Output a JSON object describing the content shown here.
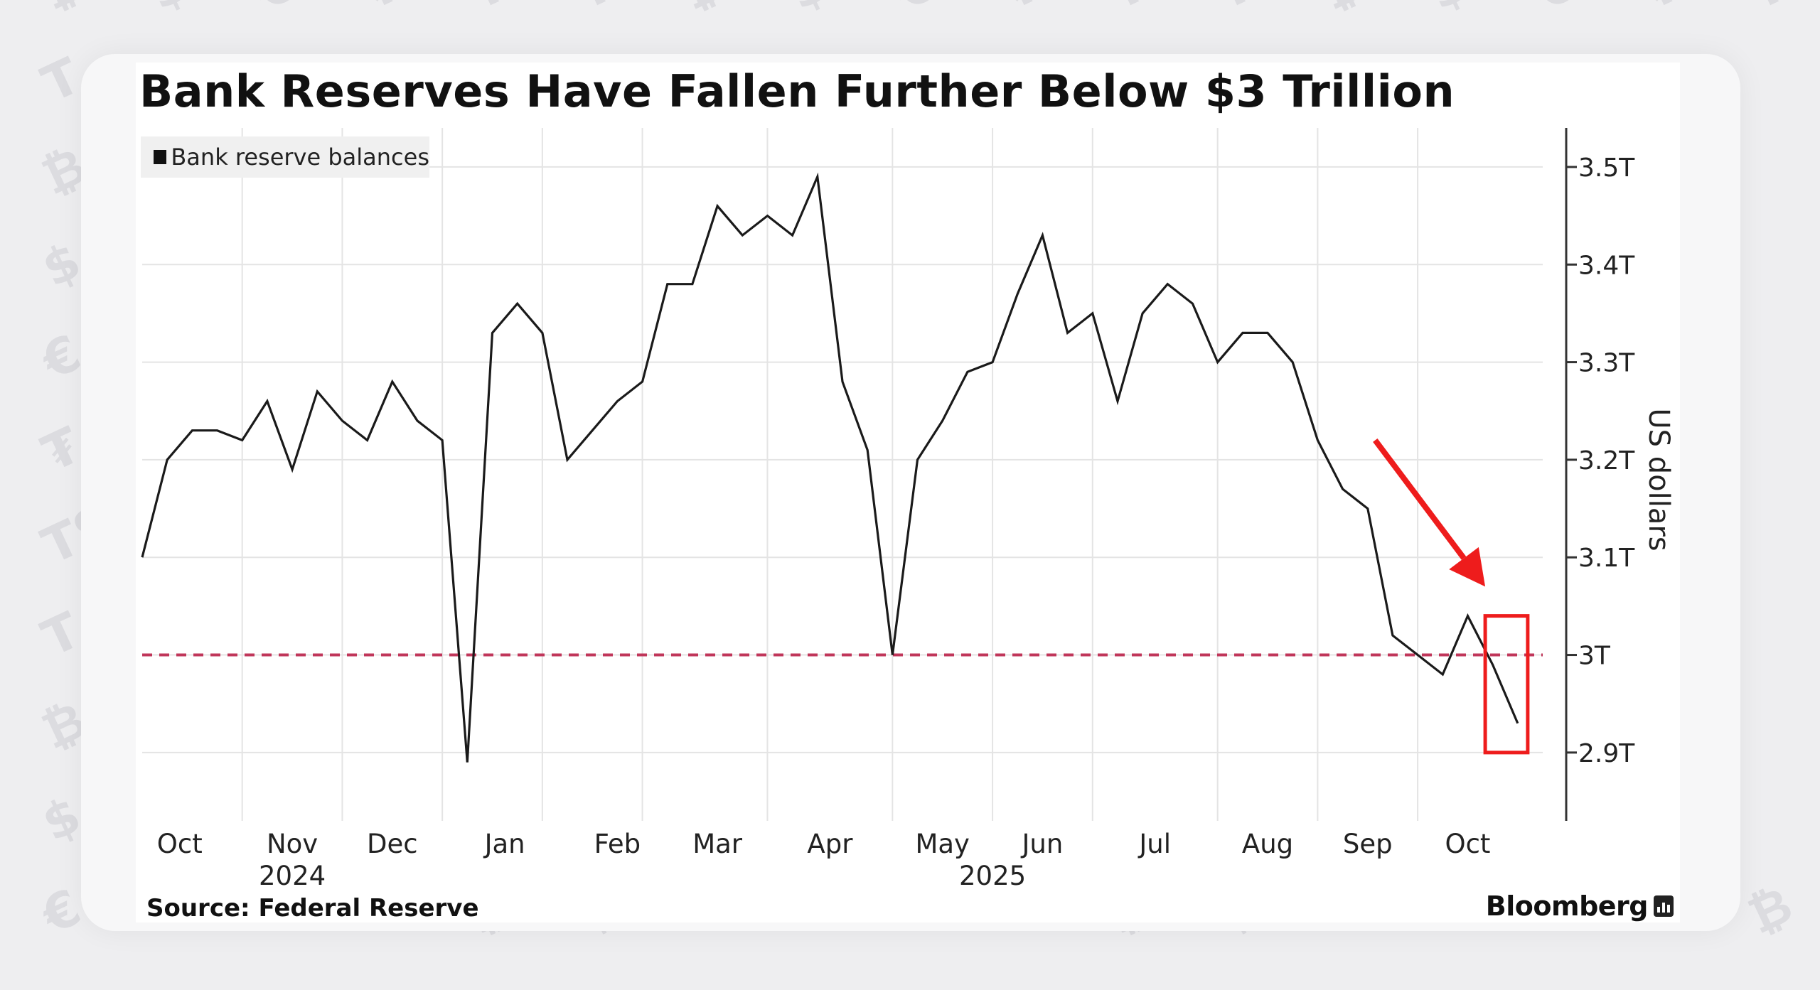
{
  "page": {
    "title": "Bank Reserves Have Fallen Further Below $3 Trillion",
    "source": "Source: Federal Reserve",
    "brand": "Bloomberg"
  },
  "colors": {
    "line": "#1a1a1a",
    "grid": "#e4e4e4",
    "axis": "#333333",
    "threshold": "#c0365a",
    "annotation": "#ee1c1c",
    "watermark": "#dcdce0"
  },
  "chart_data": {
    "type": "line",
    "title": "Bank Reserves Have Fallen Further Below $3 Trillion",
    "ylabel": "US dollars",
    "xlabel": "",
    "ylim": [
      2.83,
      3.54
    ],
    "y_ticks": [
      2.9,
      3.0,
      3.1,
      3.2,
      3.3,
      3.4,
      3.5
    ],
    "y_tick_labels": [
      "2.9T",
      "3T",
      "3.1T",
      "3.2T",
      "3.3T",
      "3.4T",
      "3.5T"
    ],
    "x_range": [
      0,
      56
    ],
    "x_tick_labels": [
      {
        "label": "Oct",
        "pos": 1.5
      },
      {
        "label": "Nov",
        "pos": 6
      },
      {
        "label": "Dec",
        "pos": 10
      },
      {
        "label": "Jan",
        "pos": 14.5
      },
      {
        "label": "Feb",
        "pos": 19
      },
      {
        "label": "Mar",
        "pos": 23
      },
      {
        "label": "Apr",
        "pos": 27.5
      },
      {
        "label": "May",
        "pos": 32
      },
      {
        "label": "Jun",
        "pos": 36
      },
      {
        "label": "Jul",
        "pos": 40.5
      },
      {
        "label": "Aug",
        "pos": 45
      },
      {
        "label": "Sep",
        "pos": 49
      },
      {
        "label": "Oct",
        "pos": 53
      }
    ],
    "year_labels": [
      {
        "label": "2024",
        "pos": 6
      },
      {
        "label": "2025",
        "pos": 34
      }
    ],
    "gridlines_x": [
      4,
      8,
      12,
      16,
      20,
      25,
      30,
      34,
      38,
      43,
      47,
      51
    ],
    "legend": [
      "Bank reserve balances"
    ],
    "legend_position": "top-left",
    "series": [
      {
        "name": "Bank reserve balances",
        "x": [
          0,
          1,
          2,
          3,
          4,
          5,
          6,
          7,
          8,
          9,
          10,
          11,
          12,
          13,
          14,
          15,
          16,
          17,
          18,
          19,
          20,
          21,
          22,
          23,
          24,
          25,
          26,
          27,
          28,
          29,
          30,
          31,
          32,
          33,
          34,
          35,
          36,
          37,
          38,
          39,
          40,
          41,
          42,
          43,
          44,
          45,
          46,
          47,
          48,
          49,
          50,
          51,
          52,
          53,
          54,
          55
        ],
        "values": [
          3.1,
          3.2,
          3.23,
          3.23,
          3.22,
          3.26,
          3.19,
          3.27,
          3.24,
          3.22,
          3.28,
          3.24,
          3.22,
          2.89,
          3.33,
          3.36,
          3.33,
          3.2,
          3.23,
          3.26,
          3.28,
          3.38,
          3.38,
          3.46,
          3.43,
          3.45,
          3.43,
          3.49,
          3.28,
          3.21,
          3.0,
          3.2,
          3.24,
          3.29,
          3.3,
          3.37,
          3.43,
          3.33,
          3.35,
          3.26,
          3.35,
          3.38,
          3.36,
          3.3,
          3.33,
          3.33,
          3.3,
          3.22,
          3.17,
          3.15,
          3.02,
          3.0,
          2.98,
          3.04,
          2.99,
          2.93
        ]
      }
    ],
    "reference_line": {
      "value": 3.0,
      "style": "dashed"
    },
    "annotations": [
      {
        "type": "arrow",
        "from": [
          49.3,
          3.22
        ],
        "to": [
          53.7,
          3.07
        ]
      },
      {
        "type": "box",
        "x": [
          53.7,
          55.4
        ],
        "y": [
          2.9,
          3.04
        ]
      }
    ]
  }
}
